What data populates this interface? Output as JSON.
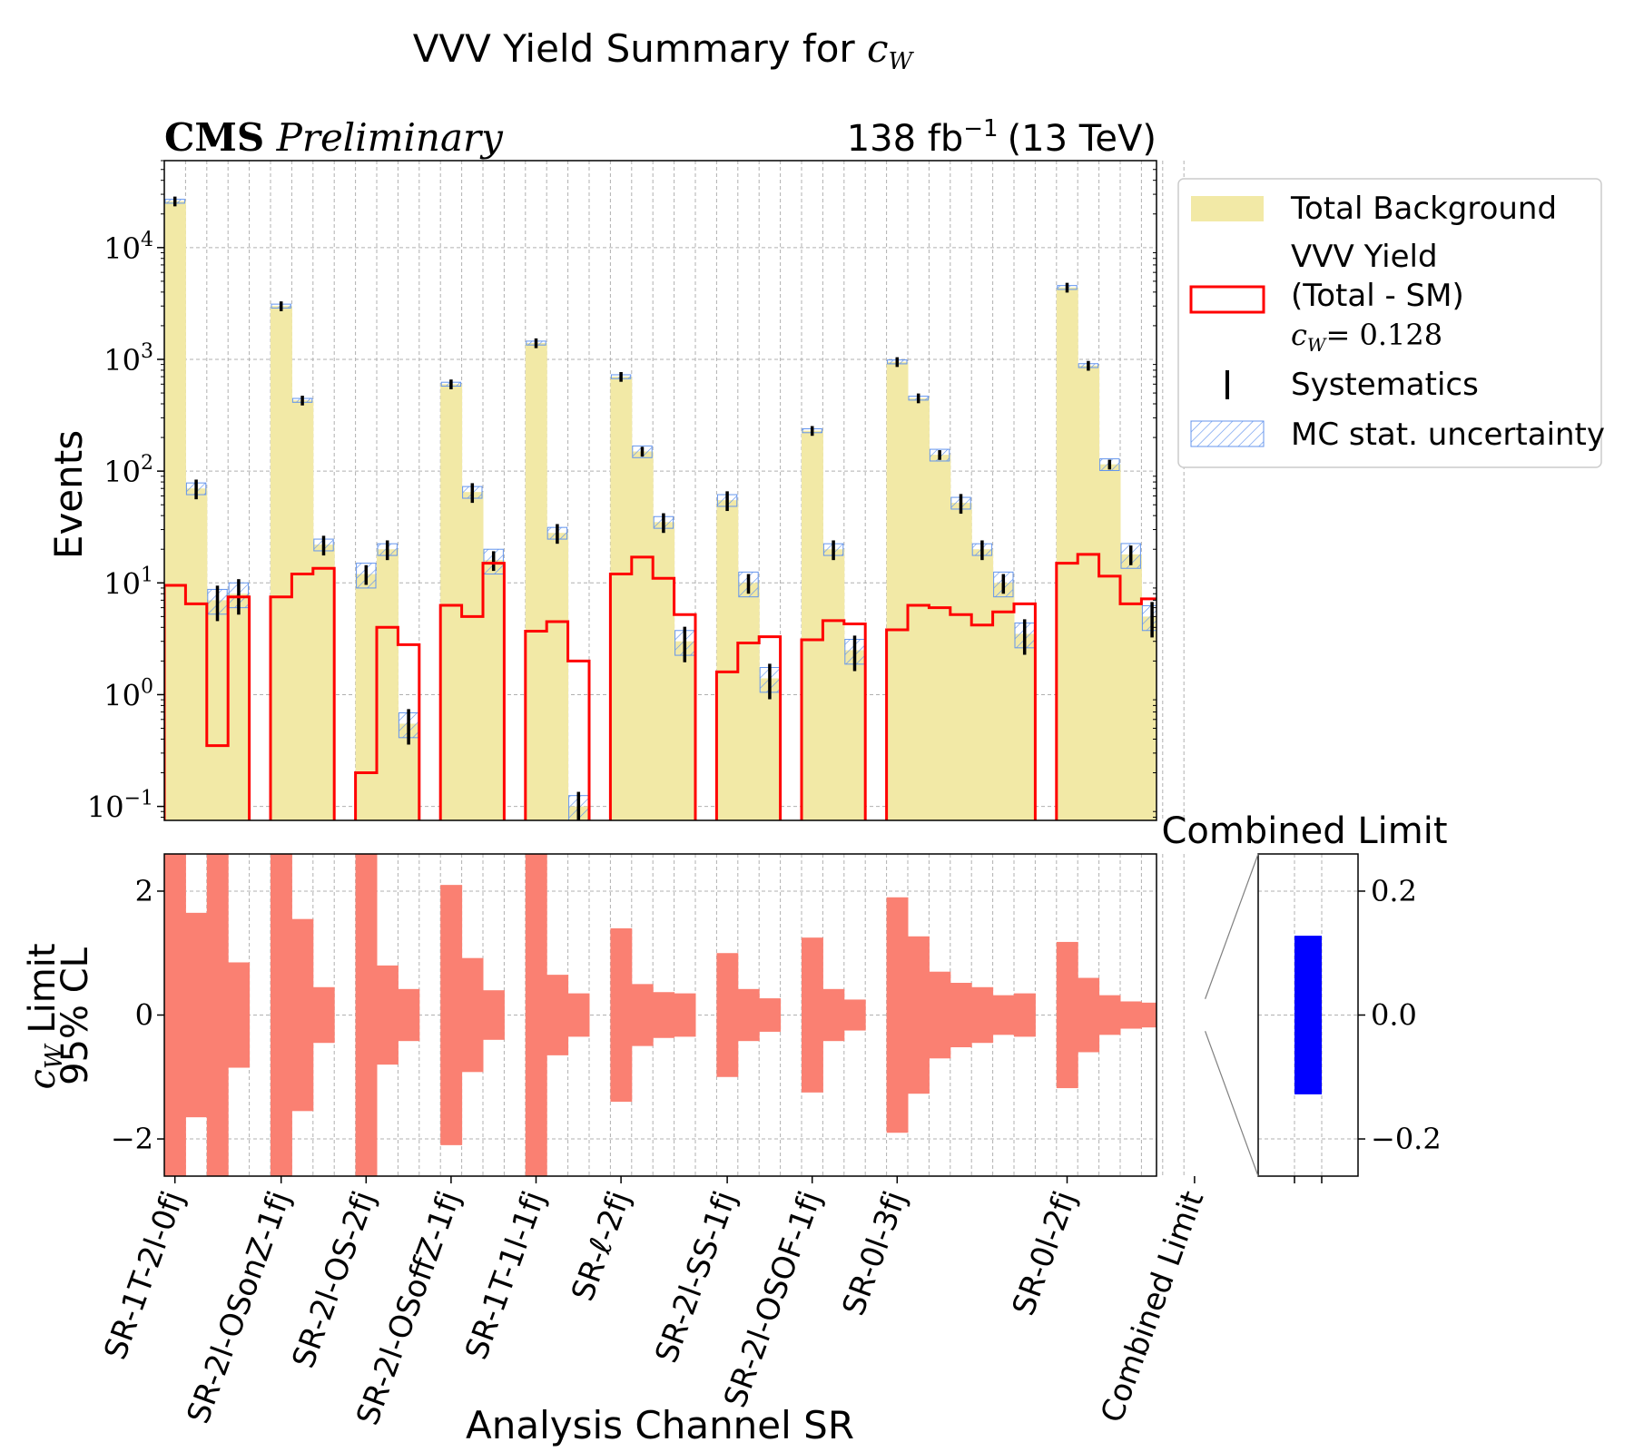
{
  "title": "VVV Yield Summary for c_W",
  "title_prefix": "VVV Yield Summary for ",
  "title_symbol": "c",
  "title_symbol_sub": "W",
  "experiment": "CMS",
  "status": "Preliminary",
  "lumi_value": "138 fb",
  "lumi_exp": "−1",
  "lumi_energy": "(13 TeV)",
  "ylabel_top": "Events",
  "ylabel_bottom_sym": "c",
  "ylabel_bottom_sub": "W",
  "ylabel_bottom_rest": " Limit",
  "ylabel_bottom_line2": "95% CL",
  "xlabel": "Analysis Channel SR",
  "combined_title": "Combined Limit",
  "legend": {
    "total_background": "Total Background",
    "vvv_line1": "VVV Yield",
    "vvv_line2": "(Total - SM)",
    "cw_sym": "c",
    "cw_sub": "W",
    "cw_val": "= 0.128",
    "systematics": "Systematics",
    "mc_stat": "MC stat. uncertainty"
  },
  "colors": {
    "background_fill": "#f2e9a6",
    "vvv_line": "#ff0000",
    "systematics": "#000000",
    "mc_stat": "#6495ed",
    "limit_fill": "#fa8072",
    "combined_fill": "#0000ff",
    "grid": "#b0b0b0"
  },
  "chart_data": [
    {
      "type": "bar",
      "panel": "yields",
      "yscale": "log",
      "ylim": [
        0.075,
        60000
      ],
      "yticks": [
        "10^-1",
        "10^0",
        "10^1",
        "10^2",
        "10^3",
        "10^4"
      ],
      "groups": [
        {
          "label": "SR-1T-2l-0fj",
          "bkg": [
            26000,
            70,
            7,
            8
          ],
          "vvv": [
            9.5,
            6.5,
            0.35,
            7.5
          ]
        },
        {
          "label": "SR-2l-OSonZ-1fj",
          "bkg": [
            3000,
            430,
            22
          ],
          "vvv": [
            7.5,
            12,
            13.5
          ]
        },
        {
          "label": "SR-2l-OS-2fj",
          "bkg": [
            12,
            20,
            0.55
          ],
          "vvv": [
            0.2,
            4,
            2.8
          ]
        },
        {
          "label": "SR-2l-OSoffZ-1fj",
          "bkg": [
            600,
            65,
            16
          ],
          "vvv": [
            6.3,
            5,
            15
          ]
        },
        {
          "label": "SR-1T-1l-1fj",
          "bkg": [
            1400,
            28,
            0.1
          ],
          "vvv": [
            3.7,
            4.5,
            2.0
          ]
        },
        {
          "label": "SR-ℓ-2fj",
          "bkg": [
            700,
            150,
            35,
            3
          ],
          "vvv": [
            12,
            17,
            11,
            5.2
          ]
        },
        {
          "label": "SR-2l-SS-1fj",
          "bkg": [
            55,
            10,
            1.4
          ],
          "vvv": [
            1.6,
            2.9,
            3.3
          ]
        },
        {
          "label": "SR-2l-OSOF-1fj",
          "bkg": [
            230,
            20,
            2.5
          ],
          "vvv": [
            3.1,
            4.6,
            4.3
          ]
        },
        {
          "label": "SR-0l-3fj",
          "bkg": [
            950,
            450,
            140,
            52,
            20,
            10,
            3.5
          ],
          "vvv": [
            3.8,
            6.3,
            6,
            5.2,
            4.2,
            5.5,
            6.5
          ]
        },
        {
          "label": "SR-0l-2fj",
          "bkg": [
            4400,
            880,
            115,
            18,
            5
          ],
          "vvv": [
            15,
            18,
            11.5,
            6.5,
            7.2
          ]
        }
      ]
    },
    {
      "type": "bar",
      "panel": "limits",
      "ylim": [
        -2.6,
        2.6
      ],
      "yticks": [
        -2,
        0,
        2
      ],
      "groups": [
        {
          "label": "SR-1T-2l-0fj",
          "limits": [
            3.0,
            1.65,
            3.0,
            0.85
          ]
        },
        {
          "label": "SR-2l-OSonZ-1fj",
          "limits": [
            3.0,
            1.55,
            0.45
          ]
        },
        {
          "label": "SR-2l-OS-2fj",
          "limits": [
            3.0,
            0.8,
            0.42
          ]
        },
        {
          "label": "SR-2l-OSoffZ-1fj",
          "limits": [
            2.1,
            0.92,
            0.4
          ]
        },
        {
          "label": "SR-1T-1l-1fj",
          "limits": [
            3.0,
            0.65,
            0.35
          ]
        },
        {
          "label": "SR-ℓ-2fj",
          "limits": [
            1.4,
            0.5,
            0.37,
            0.35
          ]
        },
        {
          "label": "SR-2l-SS-1fj",
          "limits": [
            1.0,
            0.42,
            0.27
          ]
        },
        {
          "label": "SR-2l-OSOF-1fj",
          "limits": [
            1.25,
            0.42,
            0.25
          ]
        },
        {
          "label": "SR-0l-3fj",
          "limits": [
            1.9,
            1.27,
            0.7,
            0.52,
            0.45,
            0.32,
            0.35
          ]
        },
        {
          "label": "SR-0l-2fj",
          "limits": [
            1.18,
            0.6,
            0.32,
            0.22,
            0.2
          ]
        }
      ],
      "combined": {
        "label": "Combined Limit",
        "value": 0.128
      }
    },
    {
      "type": "bar",
      "panel": "combined-zoom",
      "ylim": [
        -0.26,
        0.26
      ],
      "yticks": [
        "-0.2",
        "0.0",
        "0.2"
      ],
      "value": 0.128
    }
  ]
}
